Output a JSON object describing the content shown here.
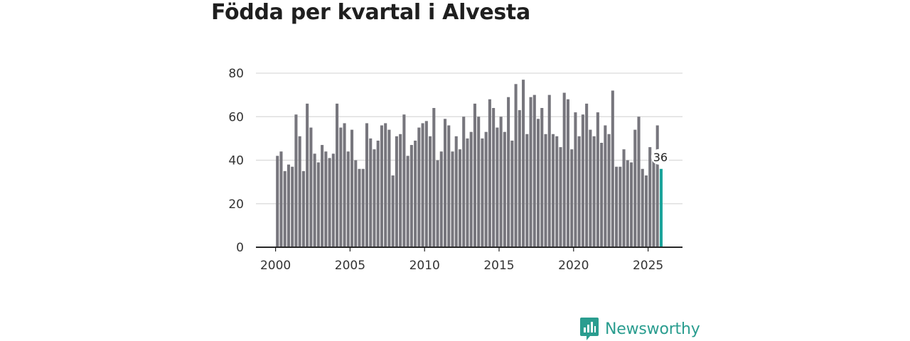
{
  "title": "Födda per kvartal i Alvesta",
  "brand": {
    "name": "Newsworthy"
  },
  "colors": {
    "bar": "#77767d",
    "highlight": "#1aa39a",
    "grid": "#d9d9d9",
    "axis": "#222222",
    "brand": "#2a9d8f"
  },
  "chart_data": {
    "type": "bar",
    "title": "Födda per kvartal i Alvesta",
    "xlabel": "",
    "ylabel": "",
    "ylim": [
      0,
      80
    ],
    "yticks": [
      0,
      20,
      40,
      60,
      80
    ],
    "xticks": [
      2000,
      2005,
      2010,
      2015,
      2020,
      2025
    ],
    "start_year": 2000,
    "start_quarter": 1,
    "highlight_label": "36",
    "values": [
      42,
      44,
      35,
      38,
      37,
      61,
      51,
      35,
      66,
      55,
      43,
      39,
      47,
      44,
      41,
      43,
      66,
      55,
      57,
      44,
      54,
      40,
      36,
      36,
      57,
      50,
      45,
      49,
      56,
      57,
      54,
      33,
      51,
      52,
      61,
      42,
      47,
      49,
      55,
      57,
      58,
      51,
      64,
      40,
      44,
      59,
      56,
      44,
      51,
      45,
      60,
      50,
      53,
      66,
      60,
      50,
      53,
      68,
      64,
      55,
      60,
      53,
      69,
      49,
      75,
      63,
      77,
      52,
      69,
      70,
      59,
      64,
      52,
      70,
      52,
      51,
      46,
      71,
      68,
      45,
      62,
      51,
      61,
      66,
      54,
      51,
      62,
      48,
      56,
      52,
      72,
      37,
      37,
      45,
      40,
      39,
      54,
      60,
      36,
      33,
      46,
      40,
      56,
      36
    ]
  }
}
